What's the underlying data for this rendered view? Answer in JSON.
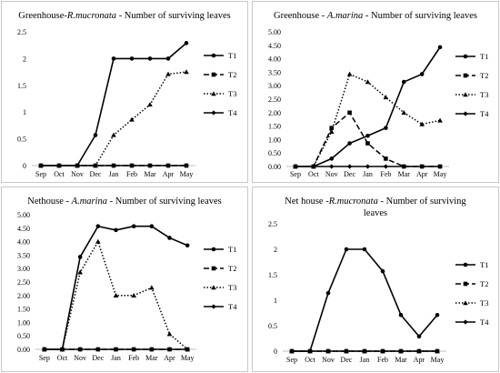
{
  "chart_data": [
    {
      "type": "line",
      "title": {
        "pre": "Greenhouse-",
        "species": "R.mucronata",
        "post": " - Number of surviving leaves"
      },
      "categories": [
        "Sep",
        "Oct",
        "Nov",
        "Dec",
        "Jan",
        "Feb",
        "Mar",
        "Apr",
        "May"
      ],
      "ylim": [
        0,
        2.5
      ],
      "yticks": [
        "0",
        "0.5",
        "1",
        "1.5",
        "2",
        "2.5"
      ],
      "yticks_values": [
        0,
        0.5,
        1,
        1.5,
        2,
        2.5
      ],
      "grid": false,
      "legend_position": "right",
      "series": [
        {
          "name": "T1",
          "style": "solid",
          "marker": "circle",
          "values": [
            0,
            0,
            0,
            0.57,
            2,
            2,
            2,
            2,
            2.29
          ]
        },
        {
          "name": "T2",
          "style": "dash",
          "marker": "square",
          "values": [
            0,
            0,
            0,
            0,
            0,
            0,
            0,
            0,
            0
          ]
        },
        {
          "name": "T3",
          "style": "dot",
          "marker": "triangle",
          "values": [
            0,
            0,
            0,
            0,
            0.57,
            0.86,
            1.14,
            1.71,
            1.75
          ]
        },
        {
          "name": "T4",
          "style": "solid",
          "marker": "diamond",
          "values": [
            0,
            0,
            0,
            0,
            0,
            0,
            0,
            0,
            0
          ]
        }
      ]
    },
    {
      "type": "line",
      "title": {
        "pre": "Greenhouse - ",
        "species": "A.marina",
        "post": " - Number of surviving leaves"
      },
      "categories": [
        "Sep",
        "Oct",
        "Nov",
        "Dec",
        "Jan",
        "Feb",
        "Mar",
        "Apr",
        "May"
      ],
      "ylim": [
        0,
        5
      ],
      "yticks": [
        "0.00",
        "0.50",
        "1.00",
        "1.50",
        "2.00",
        "2.50",
        "3.00",
        "3.50",
        "4.00",
        "4.50",
        "5.00"
      ],
      "yticks_values": [
        0,
        0.5,
        1,
        1.5,
        2,
        2.5,
        3,
        3.5,
        4,
        4.5,
        5
      ],
      "grid": false,
      "legend_position": "right",
      "series": [
        {
          "name": "T1",
          "style": "solid",
          "marker": "circle",
          "values": [
            0,
            0,
            0.29,
            0.86,
            1.14,
            1.43,
            3.14,
            3.43,
            4.43
          ]
        },
        {
          "name": "T2",
          "style": "dash",
          "marker": "square",
          "values": [
            0,
            0,
            1.43,
            2,
            0.86,
            0.29,
            0,
            0,
            0
          ]
        },
        {
          "name": "T3",
          "style": "dot",
          "marker": "triangle",
          "values": [
            0,
            0,
            1.29,
            3.43,
            3.14,
            2.57,
            2,
            1.57,
            1.71
          ]
        },
        {
          "name": "T4",
          "style": "solid",
          "marker": "diamond",
          "values": [
            0,
            0,
            0,
            0,
            0,
            0,
            0,
            0,
            0
          ]
        }
      ]
    },
    {
      "type": "line",
      "title": {
        "pre": "Nethouse - ",
        "species": "A.marina",
        "post": " - Number of surviving leaves"
      },
      "categories": [
        "Sep",
        "Oct",
        "Nov",
        "Dec",
        "Jan",
        "Feb",
        "Mar",
        "Apr",
        "May"
      ],
      "ylim": [
        0,
        5
      ],
      "yticks": [
        "0.00",
        "0.50",
        "1.00",
        "1.50",
        "2.00",
        "2.50",
        "3.00",
        "3.50",
        "4.00",
        "4.50",
        "5.00"
      ],
      "yticks_values": [
        0,
        0.5,
        1,
        1.5,
        2,
        2.5,
        3,
        3.5,
        4,
        4.5,
        5
      ],
      "grid": false,
      "legend_position": "right",
      "series": [
        {
          "name": "T1",
          "style": "solid",
          "marker": "circle",
          "values": [
            0,
            0,
            3.43,
            4.57,
            4.43,
            4.57,
            4.57,
            4.14,
            3.86
          ]
        },
        {
          "name": "T2",
          "style": "dash",
          "marker": "square",
          "values": [
            0,
            0,
            0,
            0,
            0,
            0,
            0,
            0,
            0
          ]
        },
        {
          "name": "T3",
          "style": "dot",
          "marker": "triangle",
          "values": [
            0,
            0,
            2.86,
            4,
            2,
            2,
            2.29,
            0.57,
            0
          ]
        },
        {
          "name": "T4",
          "style": "solid",
          "marker": "diamond",
          "values": [
            0,
            0,
            0,
            0,
            0,
            0,
            0,
            0,
            0
          ]
        }
      ]
    },
    {
      "type": "line",
      "title": {
        "pre": "Net house -",
        "species": "R.mucronata",
        "post": " - Number of surviving",
        "line2": "leaves"
      },
      "categories": [
        "Sep",
        "Oct",
        "Nov",
        "Dec",
        "Jan",
        "Feb",
        "Mar",
        "Apr",
        "May"
      ],
      "ylim": [
        0,
        2.5
      ],
      "yticks": [
        "0",
        "0.5",
        "1",
        "1.5",
        "2",
        "2.5"
      ],
      "yticks_values": [
        0,
        0.5,
        1,
        1.5,
        2,
        2.5
      ],
      "grid": false,
      "legend_position": "right",
      "series": [
        {
          "name": "T1",
          "style": "solid",
          "marker": "circle",
          "values": [
            0,
            0,
            1.14,
            2,
            2,
            1.57,
            0.71,
            0.29,
            0.71
          ]
        },
        {
          "name": "T2",
          "style": "dash",
          "marker": "square",
          "values": [
            0,
            0,
            0,
            0,
            0,
            0,
            0,
            0,
            0
          ]
        },
        {
          "name": "T3",
          "style": "dot",
          "marker": "triangle",
          "values": [
            0,
            0,
            0,
            0,
            0,
            0,
            0,
            0,
            0
          ]
        },
        {
          "name": "T4",
          "style": "solid",
          "marker": "diamond",
          "values": [
            0,
            0,
            0,
            0,
            0,
            0,
            0,
            0,
            0
          ]
        }
      ]
    }
  ]
}
